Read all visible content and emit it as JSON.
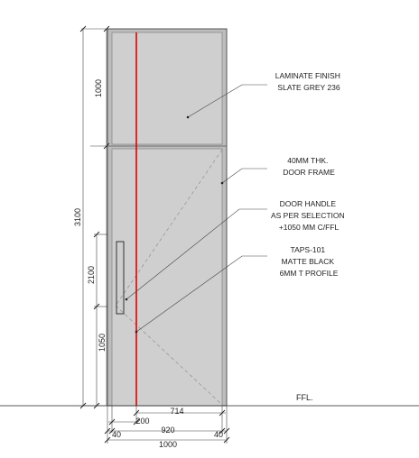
{
  "annotations": [
    {
      "id": "laminate",
      "lines": [
        "LAMINATE FINISH",
        "SLATE GREY 236"
      ]
    },
    {
      "id": "frame",
      "lines": [
        "40MM THK.",
        "DOOR FRAME"
      ]
    },
    {
      "id": "handle",
      "lines": [
        "DOOR HANDLE",
        "AS PER SELECTION",
        "+1050 MM C/FFL"
      ]
    },
    {
      "id": "profile",
      "lines": [
        "TAPS-101",
        "MATTE BLACK",
        "6MM T PROFILE"
      ]
    }
  ],
  "ffl_label": "FFL.",
  "dimensions": {
    "vertical": {
      "upper_panel": "1000",
      "overall_height": "3100",
      "handle_zone": "2100",
      "handle_height": "1050"
    },
    "horizontal": {
      "handle_offset": "200",
      "leaf_remainder": "714",
      "leaf_width": "920",
      "frame_left": "40",
      "frame_right": "40",
      "overall_width": "1000"
    }
  },
  "colors": {
    "panel_fill": "#cfcfcf",
    "frame_fill": "#bdbdbd",
    "profile_line": "#e00000",
    "ink": "#222222"
  }
}
